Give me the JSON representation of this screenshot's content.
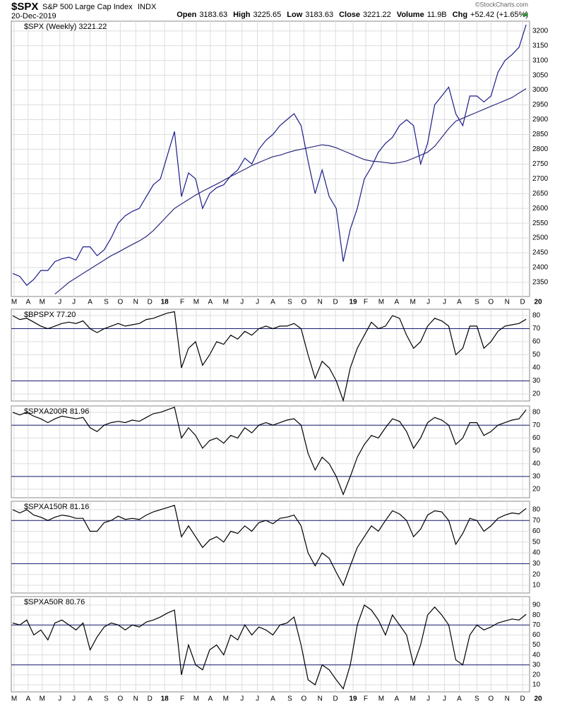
{
  "header": {
    "symbol": "$SPX",
    "name": "S&P 500 Large Cap Index",
    "exchange": "INDX",
    "date": "20-Dec-2019",
    "copyright": "©StockCharts.com",
    "quote": [
      {
        "label": "Open",
        "value": "3183.63"
      },
      {
        "label": "High",
        "value": "3225.65"
      },
      {
        "label": "Low",
        "value": "3183.63"
      },
      {
        "label": "Close",
        "value": "3221.22"
      },
      {
        "label": "Volume",
        "value": "11.9B"
      },
      {
        "label": "Chg",
        "value": "+52.42 (+1.65%)"
      }
    ]
  },
  "chart_data": [
    {
      "type": "line",
      "title": "$SPX (Weekly) 3221.22",
      "ylim": [
        2302,
        3233
      ],
      "yticks": [
        2350,
        2400,
        2450,
        2500,
        2550,
        2600,
        2650,
        2700,
        2750,
        2800,
        2850,
        2900,
        2950,
        3000,
        3050,
        3100,
        3150,
        3200
      ],
      "xlim": [
        0,
        75
      ],
      "xticks": [
        {
          "value": 0.2,
          "label": "M"
        },
        {
          "value": 2.2,
          "label": "A"
        },
        {
          "value": 4.2,
          "label": "M"
        },
        {
          "value": 6.7,
          "label": "J"
        },
        {
          "value": 8.7,
          "label": "J"
        },
        {
          "value": 11.0,
          "label": "A"
        },
        {
          "value": 13.3,
          "label": "S"
        },
        {
          "value": 15.3,
          "label": "O"
        },
        {
          "value": 17.5,
          "label": "N"
        },
        {
          "value": 19.5,
          "label": "D"
        },
        {
          "value": 21.6,
          "label": "18"
        },
        {
          "value": 24.1,
          "label": "F"
        },
        {
          "value": 26.1,
          "label": "M"
        },
        {
          "value": 28.1,
          "label": "A"
        },
        {
          "value": 30.3,
          "label": "M"
        },
        {
          "value": 32.6,
          "label": "J"
        },
        {
          "value": 34.8,
          "label": "J"
        },
        {
          "value": 37.0,
          "label": "A"
        },
        {
          "value": 39.4,
          "label": "S"
        },
        {
          "value": 41.4,
          "label": "O"
        },
        {
          "value": 43.7,
          "label": "N"
        },
        {
          "value": 45.9,
          "label": "D"
        },
        {
          "value": 48.4,
          "label": "19"
        },
        {
          "value": 50.2,
          "label": "F"
        },
        {
          "value": 52.4,
          "label": "M"
        },
        {
          "value": 54.6,
          "label": "A"
        },
        {
          "value": 56.9,
          "label": "M"
        },
        {
          "value": 59.1,
          "label": "J"
        },
        {
          "value": 61.4,
          "label": "J"
        },
        {
          "value": 63.5,
          "label": "A"
        },
        {
          "value": 66.0,
          "label": "S"
        },
        {
          "value": 68.0,
          "label": "O"
        },
        {
          "value": 70.3,
          "label": "N"
        },
        {
          "value": 72.5,
          "label": "D"
        },
        {
          "value": 74.7,
          "label": "20"
        }
      ],
      "series": [
        {
          "color": "#1c1c8a",
          "values": [
            2380,
            2370,
            2340,
            2360,
            2390,
            2390,
            2420,
            2430,
            2435,
            2425,
            2470,
            2470,
            2440,
            2460,
            2500,
            2550,
            2575,
            2590,
            2600,
            2640,
            2680,
            2700,
            2780,
            2860,
            2640,
            2720,
            2700,
            2600,
            2650,
            2670,
            2680,
            2710,
            2730,
            2770,
            2750,
            2800,
            2830,
            2850,
            2880,
            2900,
            2920,
            2880,
            2760,
            2650,
            2730,
            2640,
            2600,
            2420,
            2530,
            2600,
            2700,
            2740,
            2790,
            2820,
            2840,
            2880,
            2900,
            2880,
            2750,
            2820,
            2950,
            2980,
            3010,
            2920,
            2880,
            2980,
            2980,
            2960,
            2980,
            3060,
            3100,
            3120,
            3145,
            3221.22
          ]
        },
        {
          "color": "#2a2a80",
          "values": [
            null,
            null,
            null,
            null,
            null,
            null,
            2310,
            2330,
            2350,
            2365,
            2380,
            2395,
            2410,
            2425,
            2440,
            2452,
            2465,
            2478,
            2490,
            2505,
            2525,
            2550,
            2575,
            2600,
            2615,
            2630,
            2645,
            2658,
            2670,
            2682,
            2695,
            2708,
            2720,
            2732,
            2745,
            2755,
            2765,
            2775,
            2780,
            2788,
            2795,
            2800,
            2805,
            2810,
            2815,
            2812,
            2805,
            2795,
            2785,
            2775,
            2765,
            2760,
            2758,
            2755,
            2752,
            2755,
            2760,
            2770,
            2780,
            2790,
            2810,
            2840,
            2870,
            2895,
            2905,
            2915,
            2925,
            2935,
            2945,
            2955,
            2965,
            2975,
            2990,
            3005
          ]
        }
      ]
    },
    {
      "type": "line",
      "title": "$BPSPX 77.20",
      "ylim": [
        14.6,
        84.9
      ],
      "yticks": [
        20,
        30,
        40,
        50,
        60,
        70,
        80
      ],
      "hlines": [
        70,
        30
      ],
      "hline_color": "#1a1a70",
      "series": [
        {
          "color": "#000000",
          "values": [
            80,
            77,
            78,
            75,
            72,
            70,
            72,
            74,
            75,
            74,
            76,
            70,
            67,
            70,
            72,
            74,
            72,
            73,
            74,
            77,
            78,
            80,
            82,
            83,
            40,
            55,
            60,
            42,
            50,
            60,
            58,
            65,
            62,
            68,
            65,
            70,
            72,
            70,
            72,
            72,
            74,
            70,
            50,
            32,
            45,
            40,
            30,
            15,
            40,
            55,
            65,
            75,
            70,
            72,
            80,
            78,
            65,
            55,
            60,
            72,
            78,
            76,
            72,
            50,
            55,
            72,
            72,
            55,
            60,
            68,
            72,
            73,
            74,
            77.2
          ]
        }
      ]
    },
    {
      "type": "line",
      "title": "$SPXA200R 81.96",
      "ylim": [
        13.4,
        85
      ],
      "yticks": [
        20,
        30,
        40,
        50,
        60,
        70,
        80
      ],
      "hlines": [
        70,
        30
      ],
      "hline_color": "#1a1a70",
      "series": [
        {
          "color": "#000000",
          "values": [
            80,
            78,
            80,
            77,
            75,
            72,
            75,
            77,
            76,
            75,
            76,
            68,
            65,
            70,
            72,
            73,
            72,
            74,
            73,
            76,
            79,
            80,
            82,
            84,
            60,
            68,
            62,
            52,
            58,
            60,
            56,
            62,
            60,
            68,
            64,
            70,
            72,
            70,
            72,
            74,
            75,
            70,
            48,
            35,
            45,
            40,
            30,
            16,
            30,
            45,
            55,
            62,
            60,
            68,
            75,
            73,
            65,
            52,
            60,
            72,
            76,
            74,
            70,
            55,
            60,
            72,
            72,
            62,
            65,
            70,
            72,
            74,
            75,
            81.96
          ]
        }
      ]
    },
    {
      "type": "line",
      "title": "$SPXA150R 81.16",
      "ylim": [
        2.8,
        87.8
      ],
      "yticks": [
        10,
        20,
        30,
        40,
        50,
        60,
        70,
        80
      ],
      "hlines": [
        70,
        30
      ],
      "hline_color": "#1a1a70",
      "series": [
        {
          "color": "#000000",
          "values": [
            80,
            77,
            80,
            75,
            73,
            70,
            73,
            75,
            74,
            72,
            72,
            60,
            60,
            68,
            70,
            74,
            71,
            72,
            71,
            75,
            78,
            80,
            82,
            84,
            55,
            65,
            55,
            45,
            52,
            55,
            50,
            60,
            58,
            65,
            60,
            68,
            70,
            67,
            72,
            73,
            75,
            65,
            40,
            28,
            40,
            35,
            22,
            10,
            28,
            45,
            55,
            65,
            60,
            70,
            79,
            76,
            70,
            55,
            62,
            75,
            79,
            78,
            70,
            48,
            58,
            72,
            70,
            60,
            65,
            72,
            75,
            77,
            76,
            81.16
          ]
        }
      ]
    },
    {
      "type": "line",
      "title": "$SPXA50R 80.76",
      "ylim": [
        2.9,
        98.5
      ],
      "yticks": [
        10,
        20,
        30,
        40,
        50,
        60,
        70,
        80,
        90
      ],
      "hlines": [
        70,
        30
      ],
      "hline_color": "#1a1a70",
      "xlim": [
        0,
        75
      ],
      "xticks": [
        {
          "value": 0.2,
          "label": "M"
        },
        {
          "value": 2.2,
          "label": "A"
        },
        {
          "value": 4.2,
          "label": "M"
        },
        {
          "value": 6.7,
          "label": "J"
        },
        {
          "value": 8.7,
          "label": "J"
        },
        {
          "value": 11.0,
          "label": "A"
        },
        {
          "value": 13.3,
          "label": "S"
        },
        {
          "value": 15.3,
          "label": "O"
        },
        {
          "value": 17.5,
          "label": "N"
        },
        {
          "value": 19.5,
          "label": "D"
        },
        {
          "value": 21.6,
          "label": "18"
        },
        {
          "value": 24.1,
          "label": "F"
        },
        {
          "value": 26.1,
          "label": "M"
        },
        {
          "value": 28.1,
          "label": "A"
        },
        {
          "value": 30.3,
          "label": "M"
        },
        {
          "value": 32.6,
          "label": "J"
        },
        {
          "value": 34.8,
          "label": "J"
        },
        {
          "value": 37.0,
          "label": "A"
        },
        {
          "value": 39.4,
          "label": "S"
        },
        {
          "value": 41.4,
          "label": "O"
        },
        {
          "value": 43.7,
          "label": "N"
        },
        {
          "value": 45.9,
          "label": "D"
        },
        {
          "value": 48.4,
          "label": "19"
        },
        {
          "value": 50.2,
          "label": "F"
        },
        {
          "value": 52.4,
          "label": "M"
        },
        {
          "value": 54.6,
          "label": "A"
        },
        {
          "value": 56.9,
          "label": "M"
        },
        {
          "value": 59.1,
          "label": "J"
        },
        {
          "value": 61.4,
          "label": "J"
        },
        {
          "value": 63.5,
          "label": "A"
        },
        {
          "value": 66.0,
          "label": "S"
        },
        {
          "value": 68.0,
          "label": "O"
        },
        {
          "value": 70.3,
          "label": "N"
        },
        {
          "value": 72.5,
          "label": "D"
        },
        {
          "value": 74.7,
          "label": "20"
        }
      ],
      "series": [
        {
          "color": "#000000",
          "values": [
            72,
            70,
            75,
            60,
            65,
            55,
            72,
            75,
            70,
            65,
            72,
            45,
            58,
            68,
            72,
            70,
            65,
            70,
            68,
            73,
            75,
            78,
            82,
            85,
            20,
            50,
            30,
            25,
            45,
            50,
            40,
            60,
            55,
            70,
            60,
            68,
            65,
            60,
            70,
            72,
            78,
            50,
            15,
            10,
            30,
            25,
            15,
            6,
            30,
            70,
            90,
            85,
            75,
            60,
            80,
            70,
            60,
            30,
            50,
            80,
            88,
            80,
            70,
            35,
            30,
            60,
            70,
            65,
            68,
            72,
            74,
            76,
            75,
            80.76
          ]
        }
      ]
    }
  ]
}
